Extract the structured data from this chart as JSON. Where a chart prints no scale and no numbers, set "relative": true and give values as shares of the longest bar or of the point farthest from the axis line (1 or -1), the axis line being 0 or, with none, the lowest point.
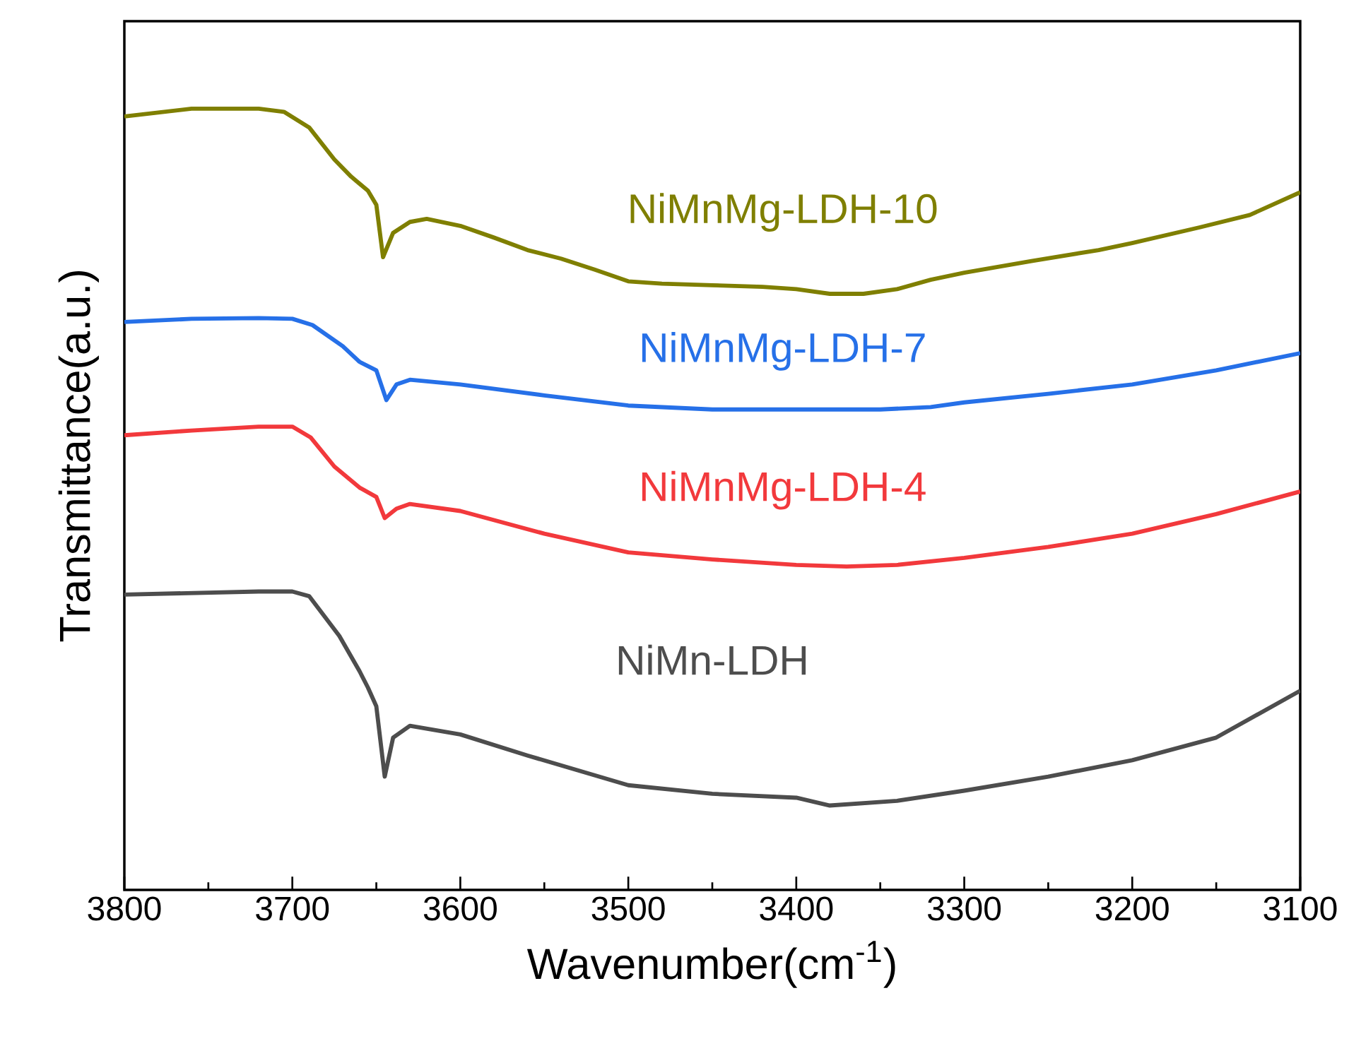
{
  "chart_data": {
    "type": "line",
    "xlabel": "Wavenumber(cm$^{-1}$)",
    "ylabel": "Transmittance(a.u.)",
    "relative": true,
    "xlim": [
      3800,
      3100
    ],
    "xticks": [
      3800,
      3700,
      3600,
      3500,
      3400,
      3300,
      3200,
      3100
    ],
    "legend": false,
    "marker": "none",
    "line_style": "solid",
    "grid": false,
    "series": [
      {
        "name": "NiMnMg-LDH-10",
        "color": "#7f7f00",
        "x": [
          3800,
          3760,
          3720,
          3705,
          3690,
          3675,
          3665,
          3655,
          3650,
          3646,
          3640,
          3630,
          3620,
          3600,
          3580,
          3560,
          3540,
          3520,
          3500,
          3480,
          3450,
          3420,
          3400,
          3380,
          3360,
          3340,
          3320,
          3300,
          3260,
          3220,
          3200,
          3160,
          3130,
          3100
        ],
        "values": [
          0.99,
          1,
          1,
          0.996,
          0.976,
          0.935,
          0.913,
          0.895,
          0.877,
          0.81,
          0.841,
          0.855,
          0.859,
          0.85,
          0.835,
          0.819,
          0.808,
          0.794,
          0.779,
          0.776,
          0.774,
          0.772,
          0.769,
          0.763,
          0.763,
          0.769,
          0.781,
          0.79,
          0.805,
          0.819,
          0.828,
          0.848,
          0.864,
          0.893
        ]
      },
      {
        "name": "NiMnMg-LDH-7",
        "color": "#2670e8",
        "x": [
          3800,
          3760,
          3720,
          3700,
          3688,
          3670,
          3660,
          3650,
          3644,
          3638,
          3630,
          3600,
          3550,
          3500,
          3450,
          3400,
          3350,
          3320,
          3300,
          3250,
          3200,
          3150,
          3100
        ],
        "values": [
          0.727,
          0.731,
          0.732,
          0.731,
          0.723,
          0.696,
          0.676,
          0.665,
          0.627,
          0.647,
          0.653,
          0.647,
          0.633,
          0.62,
          0.615,
          0.615,
          0.615,
          0.618,
          0.624,
          0.635,
          0.647,
          0.665,
          0.687
        ]
      },
      {
        "name": "NiMnMg-LDH-4",
        "color": "#f2393c",
        "x": [
          3800,
          3760,
          3720,
          3700,
          3689,
          3675,
          3660,
          3650,
          3645,
          3638,
          3630,
          3600,
          3550,
          3500,
          3450,
          3400,
          3370,
          3340,
          3300,
          3250,
          3200,
          3150,
          3100
        ],
        "values": [
          0.582,
          0.588,
          0.593,
          0.593,
          0.579,
          0.542,
          0.515,
          0.503,
          0.476,
          0.488,
          0.494,
          0.485,
          0.456,
          0.432,
          0.423,
          0.416,
          0.414,
          0.416,
          0.425,
          0.439,
          0.456,
          0.481,
          0.51
        ]
      },
      {
        "name": "NiMn-LDH",
        "color": "#4d4d4d",
        "x": [
          3800,
          3760,
          3720,
          3700,
          3690,
          3672,
          3660,
          3655,
          3650,
          3645,
          3640,
          3630,
          3600,
          3560,
          3500,
          3450,
          3400,
          3380,
          3340,
          3300,
          3250,
          3200,
          3150,
          3100
        ],
        "values": [
          0.378,
          0.38,
          0.382,
          0.382,
          0.376,
          0.325,
          0.28,
          0.259,
          0.235,
          0.145,
          0.195,
          0.21,
          0.199,
          0.172,
          0.134,
          0.123,
          0.118,
          0.108,
          0.114,
          0.127,
          0.145,
          0.166,
          0.195,
          0.255
        ]
      }
    ]
  }
}
